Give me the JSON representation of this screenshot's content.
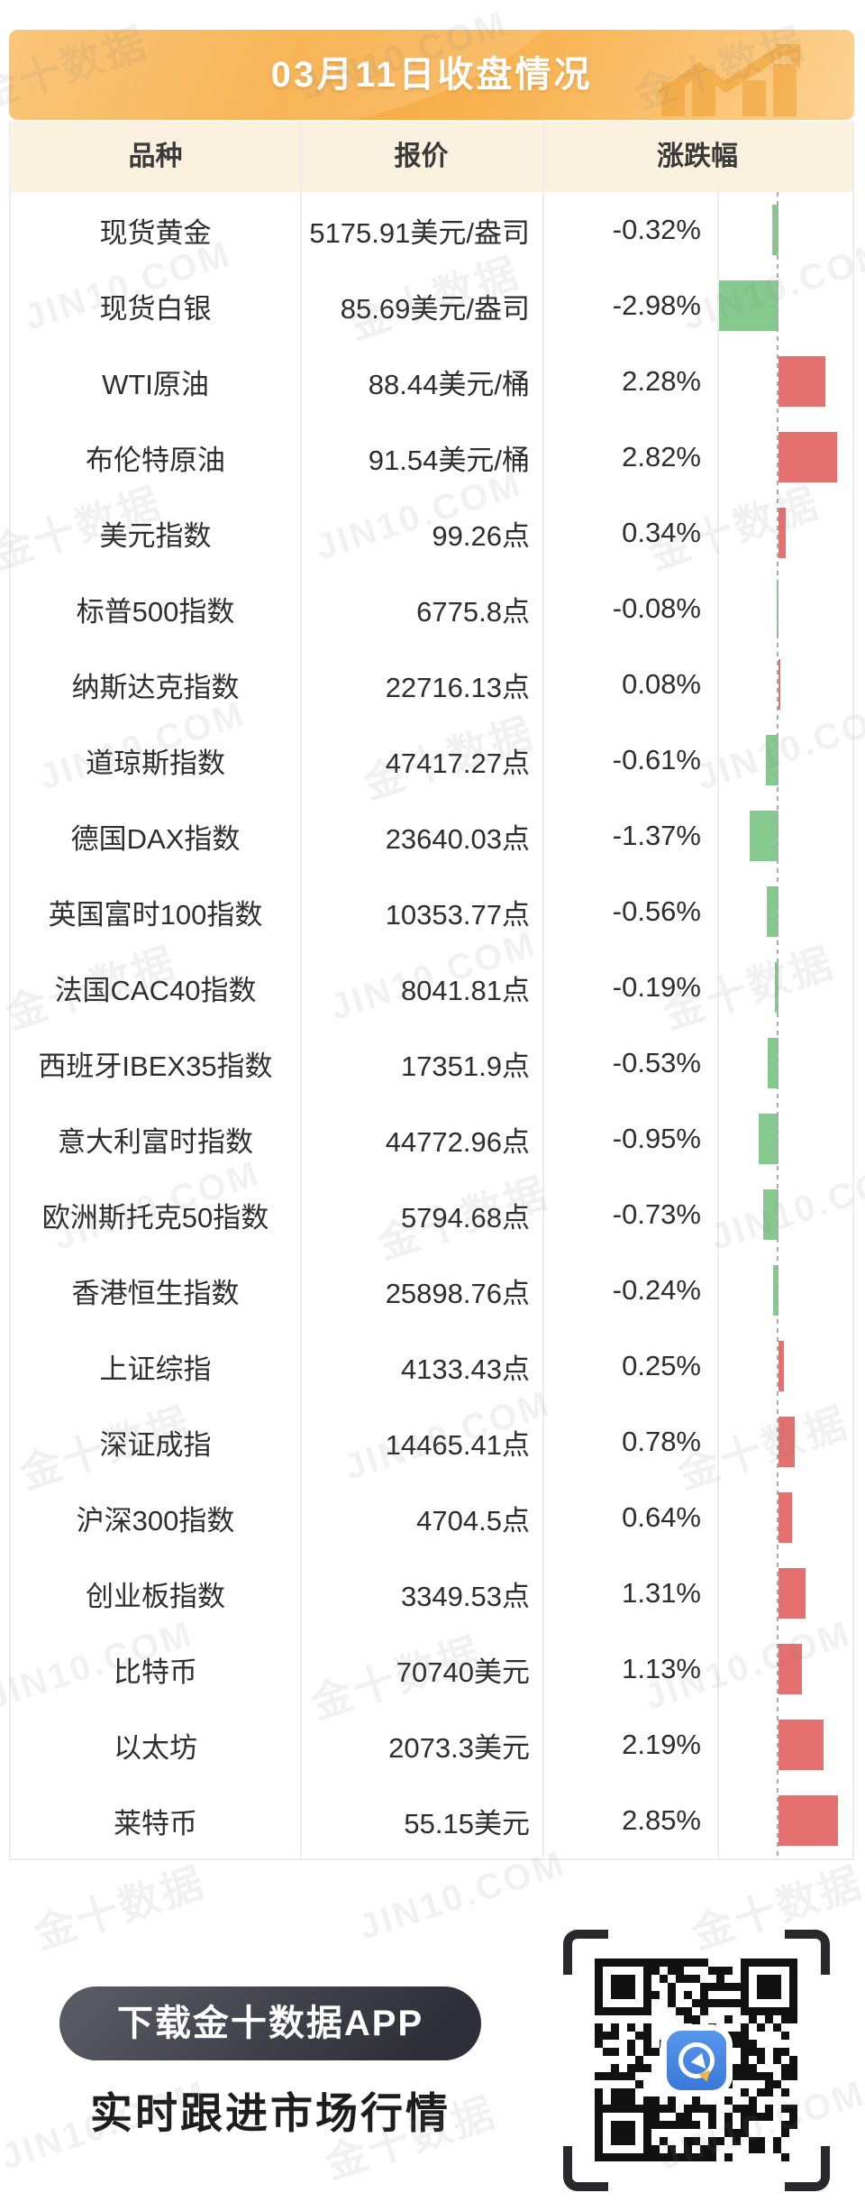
{
  "watermark": {
    "brand": "金十数据",
    "site": "JIN10.COM"
  },
  "banner": {
    "title": "03月11日收盘情况"
  },
  "table": {
    "columns": [
      "品种",
      "报价",
      "涨跌幅"
    ],
    "rows": [
      {
        "name": "现货黄金",
        "quote": "5175.91美元/盎司",
        "change": "-0.32%",
        "pct": -0.32
      },
      {
        "name": "现货白银",
        "quote": "85.69美元/盎司",
        "change": "-2.98%",
        "pct": -2.98
      },
      {
        "name": "WTI原油",
        "quote": "88.44美元/桶",
        "change": "2.28%",
        "pct": 2.28
      },
      {
        "name": "布伦特原油",
        "quote": "91.54美元/桶",
        "change": "2.82%",
        "pct": 2.82
      },
      {
        "name": "美元指数",
        "quote": "99.26点",
        "change": "0.34%",
        "pct": 0.34
      },
      {
        "name": "标普500指数",
        "quote": "6775.8点",
        "change": "-0.08%",
        "pct": -0.08
      },
      {
        "name": "纳斯达克指数",
        "quote": "22716.13点",
        "change": "0.08%",
        "pct": 0.08
      },
      {
        "name": "道琼斯指数",
        "quote": "47417.27点",
        "change": "-0.61%",
        "pct": -0.61
      },
      {
        "name": "德国DAX指数",
        "quote": "23640.03点",
        "change": "-1.37%",
        "pct": -1.37
      },
      {
        "name": "英国富时100指数",
        "quote": "10353.77点",
        "change": "-0.56%",
        "pct": -0.56
      },
      {
        "name": "法国CAC40指数",
        "quote": "8041.81点",
        "change": "-0.19%",
        "pct": -0.19
      },
      {
        "name": "西班牙IBEX35指数",
        "quote": "17351.9点",
        "change": "-0.53%",
        "pct": -0.53
      },
      {
        "name": "意大利富时指数",
        "quote": "44772.96点",
        "change": "-0.95%",
        "pct": -0.95
      },
      {
        "name": "欧洲斯托克50指数",
        "quote": "5794.68点",
        "change": "-0.73%",
        "pct": -0.73
      },
      {
        "name": "香港恒生指数",
        "quote": "25898.76点",
        "change": "-0.24%",
        "pct": -0.24
      },
      {
        "name": "上证综指",
        "quote": "4133.43点",
        "change": "0.25%",
        "pct": 0.25
      },
      {
        "name": "深证成指",
        "quote": "14465.41点",
        "change": "0.78%",
        "pct": 0.78
      },
      {
        "name": "沪深300指数",
        "quote": "4704.5点",
        "change": "0.64%",
        "pct": 0.64
      },
      {
        "name": "创业板指数",
        "quote": "3349.53点",
        "change": "1.31%",
        "pct": 1.31
      },
      {
        "name": "比特币",
        "quote": "70740美元",
        "change": "1.13%",
        "pct": 1.13
      },
      {
        "name": "以太坊",
        "quote": "2073.3美元",
        "change": "2.19%",
        "pct": 2.19
      },
      {
        "name": "莱特币",
        "quote": "55.15美元",
        "change": "2.85%",
        "pct": 2.85
      }
    ]
  },
  "footer": {
    "download_button": "下载金十数据APP",
    "tagline": "实时跟进市场行情"
  },
  "colors": {
    "up_bar": "#e57070",
    "down_bar": "#85c98e",
    "banner_orange_dark": "#f6a93c",
    "banner_orange_light": "#fdd292",
    "table_header_bg": "#faf1df"
  },
  "chart_data": {
    "type": "bar",
    "orientation": "horizontal",
    "title": "03月11日收盘情况",
    "categories": [
      "现货黄金",
      "现货白银",
      "WTI原油",
      "布伦特原油",
      "美元指数",
      "标普500指数",
      "纳斯达克指数",
      "道琼斯指数",
      "德国DAX指数",
      "英国富时100指数",
      "法国CAC40指数",
      "西班牙IBEX35指数",
      "意大利富时指数",
      "欧洲斯托克50指数",
      "香港恒生指数",
      "上证综指",
      "深证成指",
      "沪深300指数",
      "创业板指数",
      "比特币",
      "以太坊",
      "莱特币"
    ],
    "values": [
      -0.32,
      -2.98,
      2.28,
      2.82,
      0.34,
      -0.08,
      0.08,
      -0.61,
      -1.37,
      -0.56,
      -0.19,
      -0.53,
      -0.95,
      -0.73,
      -0.24,
      0.25,
      0.78,
      0.64,
      1.31,
      1.13,
      2.19,
      2.85
    ],
    "quotes": [
      "5175.91美元/盎司",
      "85.69美元/盎司",
      "88.44美元/桶",
      "91.54美元/桶",
      "99.26点",
      "6775.8点",
      "22716.13点",
      "47417.27点",
      "23640.03点",
      "10353.77点",
      "8041.81点",
      "17351.9点",
      "44772.96点",
      "5794.68点",
      "25898.76点",
      "4133.43点",
      "14465.41点",
      "4704.5点",
      "3349.53点",
      "70740美元",
      "2073.3美元",
      "55.15美元"
    ],
    "xlabel": "涨跌幅 (%)",
    "ylabel": "品种",
    "xlim": [
      -3.0,
      3.0
    ],
    "grid": false,
    "positive_color": "#e57070",
    "negative_color": "#85c98e",
    "zero_axis": "dashed"
  }
}
